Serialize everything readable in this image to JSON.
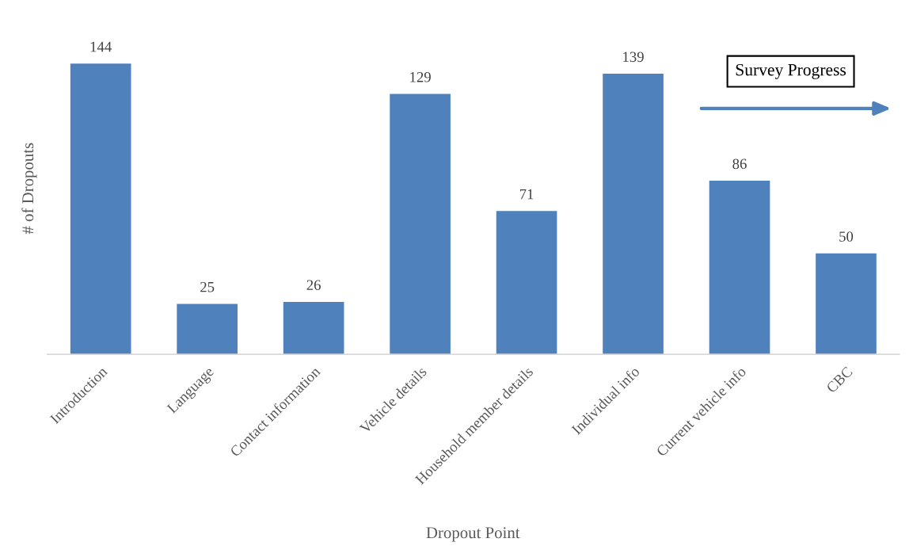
{
  "chart_data": {
    "type": "bar",
    "xlabel": "Dropout Point",
    "ylabel": "# of Dropouts",
    "categories": [
      "Introduction",
      "Language",
      "Contact information",
      "Vehicle details",
      "Household member details",
      "Individual info",
      "Current vehicle info",
      "CBC"
    ],
    "values": [
      144,
      25,
      26,
      129,
      71,
      139,
      86,
      50
    ],
    "color": "#4f81bd",
    "data_labels": true,
    "tick_labels": "x",
    "annotations": [
      "Survey Progress"
    ]
  }
}
